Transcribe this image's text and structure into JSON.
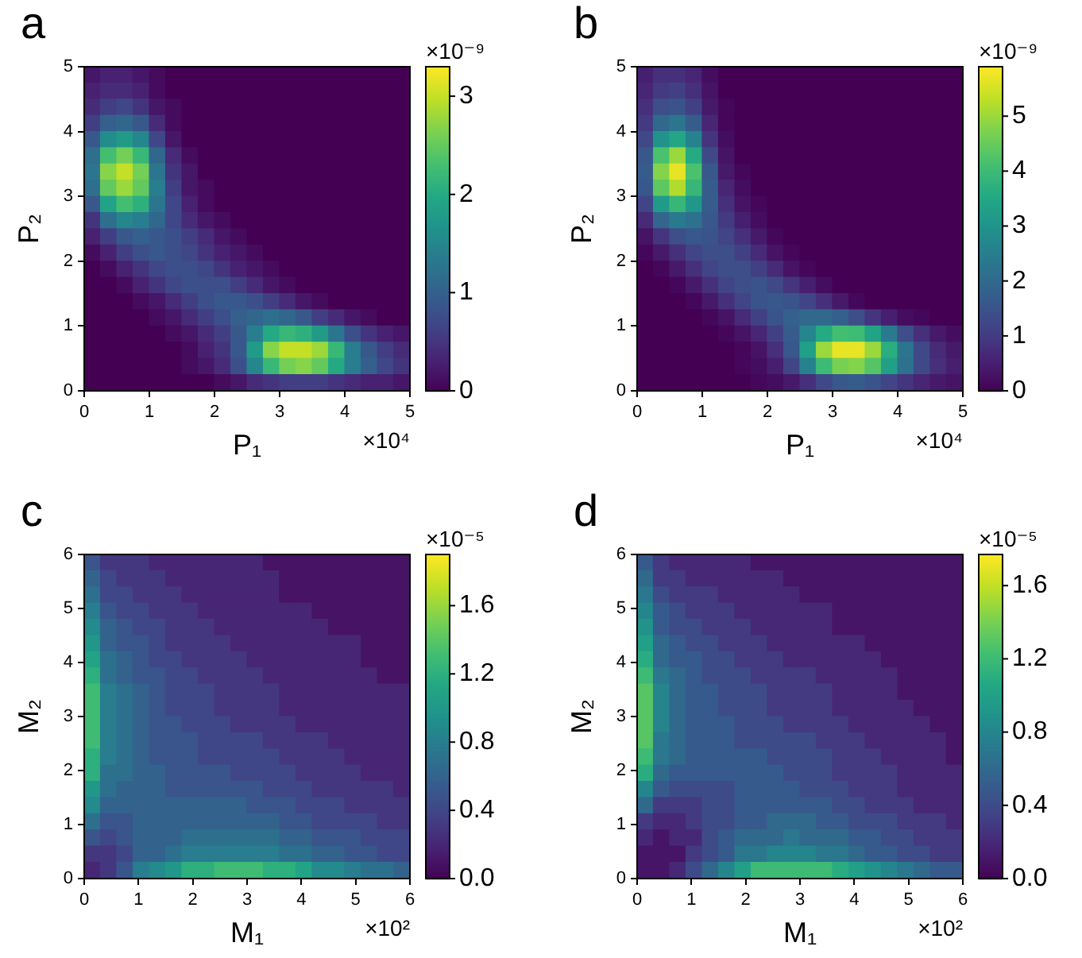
{
  "chart_data": [
    {
      "type": "heatmap",
      "title": "a",
      "xlabel": "P₁",
      "ylabel": "P₂",
      "clabel": "×10⁻⁹",
      "annotations": [
        "×10⁴"
      ],
      "xlim": [
        0,
        5
      ],
      "ylim": [
        0,
        5
      ],
      "xticks": [
        0,
        1,
        2,
        3,
        4,
        5
      ],
      "yticks": [
        0,
        1,
        2,
        3,
        4,
        5
      ],
      "clim": [
        0,
        3.3
      ],
      "cticks": [
        0,
        1,
        2,
        3
      ],
      "cells": [
        [
          0.2,
          0.3,
          0.3,
          0.2,
          0.1,
          0,
          0,
          0,
          0,
          0,
          0,
          0,
          0,
          0,
          0,
          0,
          0,
          0,
          0,
          0
        ],
        [
          0.3,
          0.4,
          0.4,
          0.3,
          0.1,
          0,
          0,
          0,
          0,
          0,
          0,
          0,
          0,
          0,
          0,
          0,
          0,
          0,
          0,
          0
        ],
        [
          0.4,
          0.6,
          0.7,
          0.5,
          0.2,
          0.1,
          0,
          0,
          0,
          0,
          0,
          0,
          0,
          0,
          0,
          0,
          0,
          0,
          0,
          0
        ],
        [
          0.6,
          1.0,
          1.1,
          0.9,
          0.4,
          0.1,
          0,
          0,
          0,
          0,
          0,
          0,
          0,
          0,
          0,
          0,
          0,
          0,
          0,
          0
        ],
        [
          0.9,
          1.6,
          1.8,
          1.5,
          0.7,
          0.2,
          0,
          0,
          0,
          0,
          0,
          0,
          0,
          0,
          0,
          0,
          0,
          0,
          0,
          0
        ],
        [
          1.2,
          2.3,
          2.6,
          2.2,
          1.1,
          0.4,
          0.1,
          0,
          0,
          0,
          0,
          0,
          0,
          0,
          0,
          0,
          0,
          0,
          0,
          0
        ],
        [
          1.3,
          2.7,
          3.0,
          2.6,
          1.3,
          0.5,
          0.2,
          0,
          0,
          0,
          0,
          0,
          0,
          0,
          0,
          0,
          0,
          0,
          0,
          0
        ],
        [
          1.2,
          2.5,
          2.8,
          2.5,
          1.4,
          0.6,
          0.2,
          0.1,
          0,
          0,
          0,
          0,
          0,
          0,
          0,
          0,
          0,
          0,
          0,
          0
        ],
        [
          0.9,
          1.9,
          2.3,
          2.1,
          1.3,
          0.7,
          0.3,
          0.1,
          0,
          0,
          0,
          0,
          0,
          0,
          0,
          0,
          0,
          0,
          0,
          0
        ],
        [
          0.5,
          1.2,
          1.5,
          1.4,
          1.1,
          0.7,
          0.4,
          0.2,
          0.1,
          0,
          0,
          0,
          0,
          0,
          0,
          0,
          0,
          0,
          0,
          0
        ],
        [
          0.3,
          0.6,
          0.9,
          1.0,
          0.9,
          0.8,
          0.6,
          0.4,
          0.2,
          0.1,
          0,
          0,
          0,
          0,
          0,
          0,
          0,
          0,
          0,
          0
        ],
        [
          0.1,
          0.3,
          0.6,
          0.8,
          0.9,
          0.8,
          0.7,
          0.5,
          0.3,
          0.2,
          0.1,
          0,
          0,
          0,
          0,
          0,
          0,
          0,
          0,
          0
        ],
        [
          0,
          0.1,
          0.3,
          0.5,
          0.7,
          0.8,
          0.8,
          0.7,
          0.5,
          0.3,
          0.2,
          0.1,
          0,
          0,
          0,
          0,
          0,
          0,
          0,
          0
        ],
        [
          0,
          0,
          0.1,
          0.3,
          0.5,
          0.7,
          0.8,
          0.8,
          0.8,
          0.6,
          0.4,
          0.2,
          0.1,
          0,
          0,
          0,
          0,
          0,
          0,
          0
        ],
        [
          0,
          0,
          0,
          0.1,
          0.2,
          0.4,
          0.6,
          0.8,
          0.9,
          0.9,
          0.8,
          0.6,
          0.4,
          0.2,
          0.1,
          0,
          0,
          0,
          0,
          0
        ],
        [
          0,
          0,
          0,
          0,
          0.1,
          0.2,
          0.4,
          0.6,
          0.8,
          1.0,
          1.1,
          1.2,
          1.1,
          0.9,
          0.6,
          0.4,
          0.2,
          0.1,
          0,
          0
        ],
        [
          0,
          0,
          0,
          0,
          0,
          0.1,
          0.2,
          0.4,
          0.6,
          0.9,
          1.4,
          2.0,
          2.2,
          2.1,
          1.8,
          1.3,
          0.8,
          0.5,
          0.3,
          0.2
        ],
        [
          0,
          0,
          0,
          0,
          0,
          0,
          0.1,
          0.3,
          0.5,
          0.9,
          1.8,
          2.7,
          3.0,
          3.0,
          2.8,
          2.2,
          1.4,
          0.9,
          0.6,
          0.4
        ],
        [
          0,
          0,
          0,
          0,
          0,
          0,
          0.1,
          0.2,
          0.4,
          0.8,
          1.5,
          2.2,
          2.6,
          2.7,
          2.5,
          2.0,
          1.4,
          1.0,
          0.7,
          0.5
        ],
        [
          0,
          0,
          0,
          0,
          0,
          0,
          0,
          0,
          0.1,
          0.2,
          0.4,
          0.5,
          0.6,
          0.6,
          0.6,
          0.5,
          0.4,
          0.3,
          0.3,
          0.2
        ]
      ]
    },
    {
      "type": "heatmap",
      "title": "b",
      "xlabel": "P₁",
      "ylabel": "P₂",
      "clabel": "×10⁻⁹",
      "annotations": [
        "×10⁴"
      ],
      "xlim": [
        0,
        5
      ],
      "ylim": [
        0,
        5
      ],
      "xticks": [
        0,
        1,
        2,
        3,
        4,
        5
      ],
      "yticks": [
        0,
        1,
        2,
        3,
        4,
        5
      ],
      "clim": [
        0,
        5.9
      ],
      "cticks": [
        0,
        1,
        2,
        3,
        4,
        5
      ],
      "cells": [
        [
          0.5,
          0.8,
          0.8,
          0.6,
          0.2,
          0,
          0,
          0,
          0,
          0,
          0,
          0,
          0,
          0,
          0,
          0,
          0,
          0,
          0,
          0
        ],
        [
          0.6,
          1.0,
          1.1,
          0.8,
          0.3,
          0,
          0,
          0,
          0,
          0,
          0,
          0,
          0,
          0,
          0,
          0,
          0,
          0,
          0,
          0
        ],
        [
          0.8,
          1.4,
          1.5,
          1.1,
          0.4,
          0.1,
          0,
          0,
          0,
          0,
          0,
          0,
          0,
          0,
          0,
          0,
          0,
          0,
          0,
          0
        ],
        [
          1.0,
          2.0,
          2.3,
          1.7,
          0.6,
          0.1,
          0,
          0,
          0,
          0,
          0,
          0,
          0,
          0,
          0,
          0,
          0,
          0,
          0,
          0
        ],
        [
          1.3,
          3.0,
          3.5,
          2.6,
          0.9,
          0.2,
          0,
          0,
          0,
          0,
          0,
          0,
          0,
          0,
          0,
          0,
          0,
          0,
          0,
          0
        ],
        [
          1.6,
          4.2,
          5.0,
          3.6,
          1.3,
          0.3,
          0,
          0,
          0,
          0,
          0,
          0,
          0,
          0,
          0,
          0,
          0,
          0,
          0,
          0
        ],
        [
          1.7,
          4.8,
          5.7,
          4.2,
          1.6,
          0.4,
          0.1,
          0,
          0,
          0,
          0,
          0,
          0,
          0,
          0,
          0,
          0,
          0,
          0,
          0
        ],
        [
          1.6,
          4.4,
          5.2,
          3.9,
          1.7,
          0.6,
          0.2,
          0,
          0,
          0,
          0,
          0,
          0,
          0,
          0,
          0,
          0,
          0,
          0,
          0
        ],
        [
          1.2,
          3.2,
          3.9,
          3.1,
          1.7,
          0.8,
          0.3,
          0.1,
          0,
          0,
          0,
          0,
          0,
          0,
          0,
          0,
          0,
          0,
          0,
          0
        ],
        [
          0.7,
          1.9,
          2.4,
          2.2,
          1.6,
          1.0,
          0.5,
          0.2,
          0,
          0,
          0,
          0,
          0,
          0,
          0,
          0,
          0,
          0,
          0,
          0
        ],
        [
          0.3,
          0.9,
          1.4,
          1.6,
          1.5,
          1.2,
          0.8,
          0.4,
          0.1,
          0,
          0,
          0,
          0,
          0,
          0,
          0,
          0,
          0,
          0,
          0
        ],
        [
          0.1,
          0.4,
          0.8,
          1.2,
          1.4,
          1.4,
          1.1,
          0.7,
          0.3,
          0.1,
          0,
          0,
          0,
          0,
          0,
          0,
          0,
          0,
          0,
          0
        ],
        [
          0,
          0.1,
          0.4,
          0.8,
          1.2,
          1.4,
          1.4,
          1.1,
          0.7,
          0.3,
          0.1,
          0,
          0,
          0,
          0,
          0,
          0,
          0,
          0,
          0
        ],
        [
          0,
          0,
          0.1,
          0.4,
          0.8,
          1.2,
          1.4,
          1.5,
          1.3,
          0.9,
          0.5,
          0.2,
          0,
          0,
          0,
          0,
          0,
          0,
          0,
          0
        ],
        [
          0,
          0,
          0,
          0.1,
          0.4,
          0.8,
          1.2,
          1.5,
          1.6,
          1.5,
          1.2,
          0.8,
          0.4,
          0.1,
          0,
          0,
          0,
          0,
          0,
          0
        ],
        [
          0,
          0,
          0,
          0,
          0.1,
          0.3,
          0.7,
          1.1,
          1.5,
          1.8,
          2.0,
          2.0,
          1.8,
          1.4,
          0.9,
          0.5,
          0.2,
          0.1,
          0,
          0
        ],
        [
          0,
          0,
          0,
          0,
          0,
          0.1,
          0.3,
          0.6,
          1.1,
          1.7,
          2.7,
          3.6,
          4.1,
          4.0,
          3.4,
          2.4,
          1.4,
          0.8,
          0.4,
          0.2
        ],
        [
          0,
          0,
          0,
          0,
          0,
          0,
          0.1,
          0.3,
          0.8,
          1.6,
          3.3,
          5.0,
          5.7,
          5.7,
          5.0,
          3.7,
          2.3,
          1.3,
          0.7,
          0.4
        ],
        [
          0,
          0,
          0,
          0,
          0,
          0,
          0.1,
          0.2,
          0.5,
          1.2,
          2.6,
          4.0,
          4.7,
          4.8,
          4.3,
          3.3,
          2.2,
          1.3,
          0.8,
          0.5
        ],
        [
          0,
          0,
          0,
          0,
          0,
          0,
          0,
          0.1,
          0.2,
          0.4,
          0.8,
          1.3,
          1.6,
          1.7,
          1.5,
          1.2,
          0.9,
          0.6,
          0.4,
          0.3
        ]
      ]
    },
    {
      "type": "heatmap",
      "title": "c",
      "xlabel": "M₁",
      "ylabel": "M₂",
      "clabel": "×10⁻⁵",
      "annotations": [
        "×10²"
      ],
      "xlim": [
        0,
        6
      ],
      "ylim": [
        0,
        6
      ],
      "xticks": [
        0,
        1,
        2,
        3,
        4,
        5,
        6
      ],
      "yticks": [
        0,
        1,
        2,
        3,
        4,
        5,
        6
      ],
      "clim": [
        0,
        1.9
      ],
      "cticks": [
        {
          "value": 0,
          "label": "0.0"
        },
        0.4,
        0.8,
        1.2,
        1.6
      ],
      "cells": [
        [
          0.5,
          0.3,
          0.3,
          0.3,
          0.2,
          0.2,
          0.2,
          0.2,
          0.2,
          0.2,
          0.2,
          0.1,
          0.1,
          0.1,
          0.1,
          0.1,
          0.1,
          0.1,
          0.1,
          0.1
        ],
        [
          0.6,
          0.4,
          0.3,
          0.3,
          0.3,
          0.2,
          0.2,
          0.2,
          0.2,
          0.2,
          0.2,
          0.2,
          0.1,
          0.1,
          0.1,
          0.1,
          0.1,
          0.1,
          0.1,
          0.1
        ],
        [
          0.7,
          0.4,
          0.4,
          0.3,
          0.3,
          0.3,
          0.2,
          0.2,
          0.2,
          0.2,
          0.2,
          0.2,
          0.1,
          0.1,
          0.1,
          0.1,
          0.1,
          0.1,
          0.1,
          0.1
        ],
        [
          0.8,
          0.5,
          0.4,
          0.4,
          0.3,
          0.3,
          0.3,
          0.2,
          0.2,
          0.2,
          0.2,
          0.2,
          0.2,
          0.2,
          0.1,
          0.1,
          0.1,
          0.1,
          0.1,
          0.1
        ],
        [
          0.9,
          0.6,
          0.5,
          0.4,
          0.4,
          0.3,
          0.3,
          0.3,
          0.2,
          0.2,
          0.2,
          0.2,
          0.2,
          0.2,
          0.2,
          0.1,
          0.1,
          0.1,
          0.1,
          0.1
        ],
        [
          1.0,
          0.6,
          0.5,
          0.5,
          0.4,
          0.3,
          0.3,
          0.3,
          0.3,
          0.2,
          0.2,
          0.2,
          0.2,
          0.2,
          0.2,
          0.2,
          0.2,
          0.1,
          0.1,
          0.1
        ],
        [
          1.1,
          0.7,
          0.6,
          0.5,
          0.4,
          0.4,
          0.3,
          0.3,
          0.3,
          0.3,
          0.2,
          0.2,
          0.2,
          0.2,
          0.2,
          0.2,
          0.2,
          0.1,
          0.1,
          0.1
        ],
        [
          1.2,
          0.7,
          0.6,
          0.5,
          0.5,
          0.4,
          0.4,
          0.3,
          0.3,
          0.3,
          0.3,
          0.2,
          0.2,
          0.2,
          0.2,
          0.2,
          0.2,
          0.2,
          0.1,
          0.1
        ],
        [
          1.3,
          0.8,
          0.7,
          0.6,
          0.5,
          0.4,
          0.4,
          0.4,
          0.3,
          0.3,
          0.3,
          0.3,
          0.2,
          0.2,
          0.2,
          0.2,
          0.2,
          0.2,
          0.2,
          0.2
        ],
        [
          1.3,
          0.8,
          0.7,
          0.6,
          0.5,
          0.4,
          0.4,
          0.4,
          0.3,
          0.3,
          0.3,
          0.3,
          0.2,
          0.2,
          0.2,
          0.2,
          0.2,
          0.2,
          0.2,
          0.2
        ],
        [
          1.3,
          0.8,
          0.7,
          0.6,
          0.5,
          0.5,
          0.4,
          0.4,
          0.4,
          0.3,
          0.3,
          0.3,
          0.3,
          0.2,
          0.2,
          0.2,
          0.2,
          0.2,
          0.2,
          0.2
        ],
        [
          1.3,
          0.8,
          0.7,
          0.6,
          0.5,
          0.5,
          0.5,
          0.4,
          0.4,
          0.4,
          0.4,
          0.3,
          0.3,
          0.3,
          0.3,
          0.2,
          0.2,
          0.2,
          0.2,
          0.2
        ],
        [
          1.2,
          0.8,
          0.7,
          0.6,
          0.5,
          0.5,
          0.5,
          0.4,
          0.4,
          0.4,
          0.4,
          0.4,
          0.3,
          0.3,
          0.3,
          0.3,
          0.2,
          0.2,
          0.2,
          0.2
        ],
        [
          1.2,
          0.7,
          0.7,
          0.6,
          0.6,
          0.5,
          0.5,
          0.5,
          0.5,
          0.4,
          0.4,
          0.4,
          0.4,
          0.3,
          0.3,
          0.3,
          0.3,
          0.2,
          0.2,
          0.2
        ],
        [
          1.0,
          0.7,
          0.6,
          0.6,
          0.6,
          0.5,
          0.5,
          0.5,
          0.5,
          0.5,
          0.5,
          0.4,
          0.4,
          0.4,
          0.3,
          0.3,
          0.3,
          0.3,
          0.3,
          0.2
        ],
        [
          0.9,
          0.6,
          0.6,
          0.6,
          0.6,
          0.6,
          0.6,
          0.6,
          0.6,
          0.6,
          0.5,
          0.5,
          0.5,
          0.4,
          0.4,
          0.4,
          0.3,
          0.3,
          0.3,
          0.3
        ],
        [
          0.7,
          0.5,
          0.5,
          0.6,
          0.6,
          0.6,
          0.6,
          0.6,
          0.6,
          0.6,
          0.6,
          0.6,
          0.5,
          0.5,
          0.4,
          0.4,
          0.4,
          0.4,
          0.3,
          0.3
        ],
        [
          0.5,
          0.4,
          0.5,
          0.6,
          0.6,
          0.6,
          0.7,
          0.7,
          0.7,
          0.7,
          0.7,
          0.7,
          0.6,
          0.6,
          0.5,
          0.5,
          0.5,
          0.4,
          0.4,
          0.4
        ],
        [
          0.3,
          0.3,
          0.4,
          0.6,
          0.6,
          0.7,
          0.8,
          0.8,
          0.8,
          0.8,
          0.8,
          0.8,
          0.7,
          0.7,
          0.6,
          0.6,
          0.5,
          0.5,
          0.4,
          0.4
        ],
        [
          0.2,
          0.3,
          0.5,
          0.8,
          0.9,
          1.0,
          1.2,
          1.2,
          1.3,
          1.3,
          1.3,
          1.2,
          1.2,
          1.1,
          0.9,
          0.9,
          0.8,
          0.7,
          0.7,
          0.6
        ]
      ]
    },
    {
      "type": "heatmap",
      "title": "d",
      "xlabel": "M₁",
      "ylabel": "M₂",
      "clabel": "×10⁻⁵",
      "annotations": [
        "×10²"
      ],
      "xlim": [
        0,
        6
      ],
      "ylim": [
        0,
        6
      ],
      "xticks": [
        0,
        1,
        2,
        3,
        4,
        5,
        6
      ],
      "yticks": [
        0,
        1,
        2,
        3,
        4,
        5,
        6
      ],
      "clim": [
        0,
        1.77
      ],
      "cticks": [
        {
          "value": 0,
          "label": "0.0"
        },
        0.4,
        0.8,
        1.2,
        1.6
      ],
      "cells": [
        [
          0.5,
          0.3,
          0.2,
          0.2,
          0.2,
          0.2,
          0.2,
          0.1,
          0.1,
          0.1,
          0.1,
          0.1,
          0.1,
          0.1,
          0.1,
          0.1,
          0.1,
          0.1,
          0.1,
          0.1
        ],
        [
          0.6,
          0.3,
          0.3,
          0.2,
          0.2,
          0.2,
          0.2,
          0.2,
          0.2,
          0.1,
          0.1,
          0.1,
          0.1,
          0.1,
          0.1,
          0.1,
          0.1,
          0.1,
          0.1,
          0.1
        ],
        [
          0.7,
          0.4,
          0.3,
          0.3,
          0.3,
          0.2,
          0.2,
          0.2,
          0.2,
          0.2,
          0.1,
          0.1,
          0.1,
          0.1,
          0.1,
          0.1,
          0.1,
          0.1,
          0.1,
          0.1
        ],
        [
          0.8,
          0.5,
          0.4,
          0.3,
          0.3,
          0.3,
          0.2,
          0.2,
          0.2,
          0.2,
          0.2,
          0.2,
          0.1,
          0.1,
          0.1,
          0.1,
          0.1,
          0.1,
          0.1,
          0.1
        ],
        [
          0.9,
          0.5,
          0.4,
          0.4,
          0.3,
          0.3,
          0.3,
          0.2,
          0.2,
          0.2,
          0.2,
          0.2,
          0.1,
          0.1,
          0.1,
          0.1,
          0.1,
          0.1,
          0.1,
          0.1
        ],
        [
          1.0,
          0.6,
          0.5,
          0.4,
          0.4,
          0.3,
          0.3,
          0.3,
          0.2,
          0.2,
          0.2,
          0.2,
          0.2,
          0.2,
          0.1,
          0.1,
          0.1,
          0.1,
          0.1,
          0.1
        ],
        [
          1.1,
          0.6,
          0.5,
          0.5,
          0.4,
          0.4,
          0.3,
          0.3,
          0.3,
          0.2,
          0.2,
          0.2,
          0.2,
          0.2,
          0.2,
          0.1,
          0.1,
          0.1,
          0.1,
          0.1
        ],
        [
          1.2,
          0.7,
          0.6,
          0.5,
          0.4,
          0.4,
          0.4,
          0.3,
          0.3,
          0.3,
          0.3,
          0.2,
          0.2,
          0.2,
          0.2,
          0.2,
          0.1,
          0.1,
          0.1,
          0.1
        ],
        [
          1.3,
          0.8,
          0.6,
          0.5,
          0.5,
          0.4,
          0.4,
          0.4,
          0.3,
          0.3,
          0.3,
          0.3,
          0.2,
          0.2,
          0.2,
          0.2,
          0.1,
          0.1,
          0.1,
          0.1
        ],
        [
          1.3,
          0.8,
          0.6,
          0.5,
          0.5,
          0.4,
          0.4,
          0.4,
          0.3,
          0.3,
          0.3,
          0.3,
          0.2,
          0.2,
          0.2,
          0.2,
          0.2,
          0.1,
          0.1,
          0.1
        ],
        [
          1.3,
          0.8,
          0.6,
          0.5,
          0.5,
          0.5,
          0.4,
          0.4,
          0.4,
          0.3,
          0.3,
          0.3,
          0.3,
          0.2,
          0.2,
          0.2,
          0.2,
          0.2,
          0.1,
          0.1
        ],
        [
          1.3,
          0.7,
          0.6,
          0.5,
          0.5,
          0.5,
          0.4,
          0.4,
          0.4,
          0.4,
          0.4,
          0.3,
          0.3,
          0.3,
          0.2,
          0.2,
          0.2,
          0.2,
          0.2,
          0.1
        ],
        [
          1.2,
          0.7,
          0.6,
          0.5,
          0.5,
          0.5,
          0.5,
          0.5,
          0.4,
          0.4,
          0.4,
          0.4,
          0.3,
          0.3,
          0.3,
          0.2,
          0.2,
          0.2,
          0.2,
          0.1
        ],
        [
          1.1,
          0.6,
          0.5,
          0.5,
          0.5,
          0.5,
          0.5,
          0.5,
          0.5,
          0.4,
          0.4,
          0.4,
          0.3,
          0.3,
          0.3,
          0.3,
          0.2,
          0.2,
          0.2,
          0.2
        ],
        [
          0.8,
          0.5,
          0.4,
          0.4,
          0.4,
          0.4,
          0.5,
          0.5,
          0.5,
          0.5,
          0.4,
          0.4,
          0.4,
          0.3,
          0.3,
          0.3,
          0.2,
          0.2,
          0.2,
          0.2
        ],
        [
          0.6,
          0.3,
          0.3,
          0.3,
          0.4,
          0.4,
          0.5,
          0.5,
          0.5,
          0.5,
          0.5,
          0.5,
          0.4,
          0.4,
          0.3,
          0.3,
          0.3,
          0.2,
          0.2,
          0.2
        ],
        [
          0.3,
          0.2,
          0.2,
          0.3,
          0.4,
          0.4,
          0.5,
          0.5,
          0.6,
          0.6,
          0.6,
          0.5,
          0.5,
          0.4,
          0.4,
          0.4,
          0.3,
          0.3,
          0.3,
          0.2
        ],
        [
          0.2,
          0.1,
          0.2,
          0.2,
          0.4,
          0.5,
          0.6,
          0.6,
          0.6,
          0.7,
          0.6,
          0.6,
          0.6,
          0.5,
          0.5,
          0.4,
          0.4,
          0.3,
          0.3,
          0.3
        ],
        [
          0.1,
          0.1,
          0.1,
          0.3,
          0.4,
          0.5,
          0.7,
          0.7,
          0.8,
          0.8,
          0.8,
          0.7,
          0.7,
          0.6,
          0.5,
          0.5,
          0.4,
          0.4,
          0.3,
          0.3
        ],
        [
          0.1,
          0.1,
          0.2,
          0.4,
          0.6,
          0.8,
          1.0,
          1.2,
          1.2,
          1.2,
          1.2,
          1.2,
          1.1,
          1.0,
          0.9,
          0.8,
          0.7,
          0.6,
          0.5,
          0.5
        ]
      ]
    }
  ]
}
